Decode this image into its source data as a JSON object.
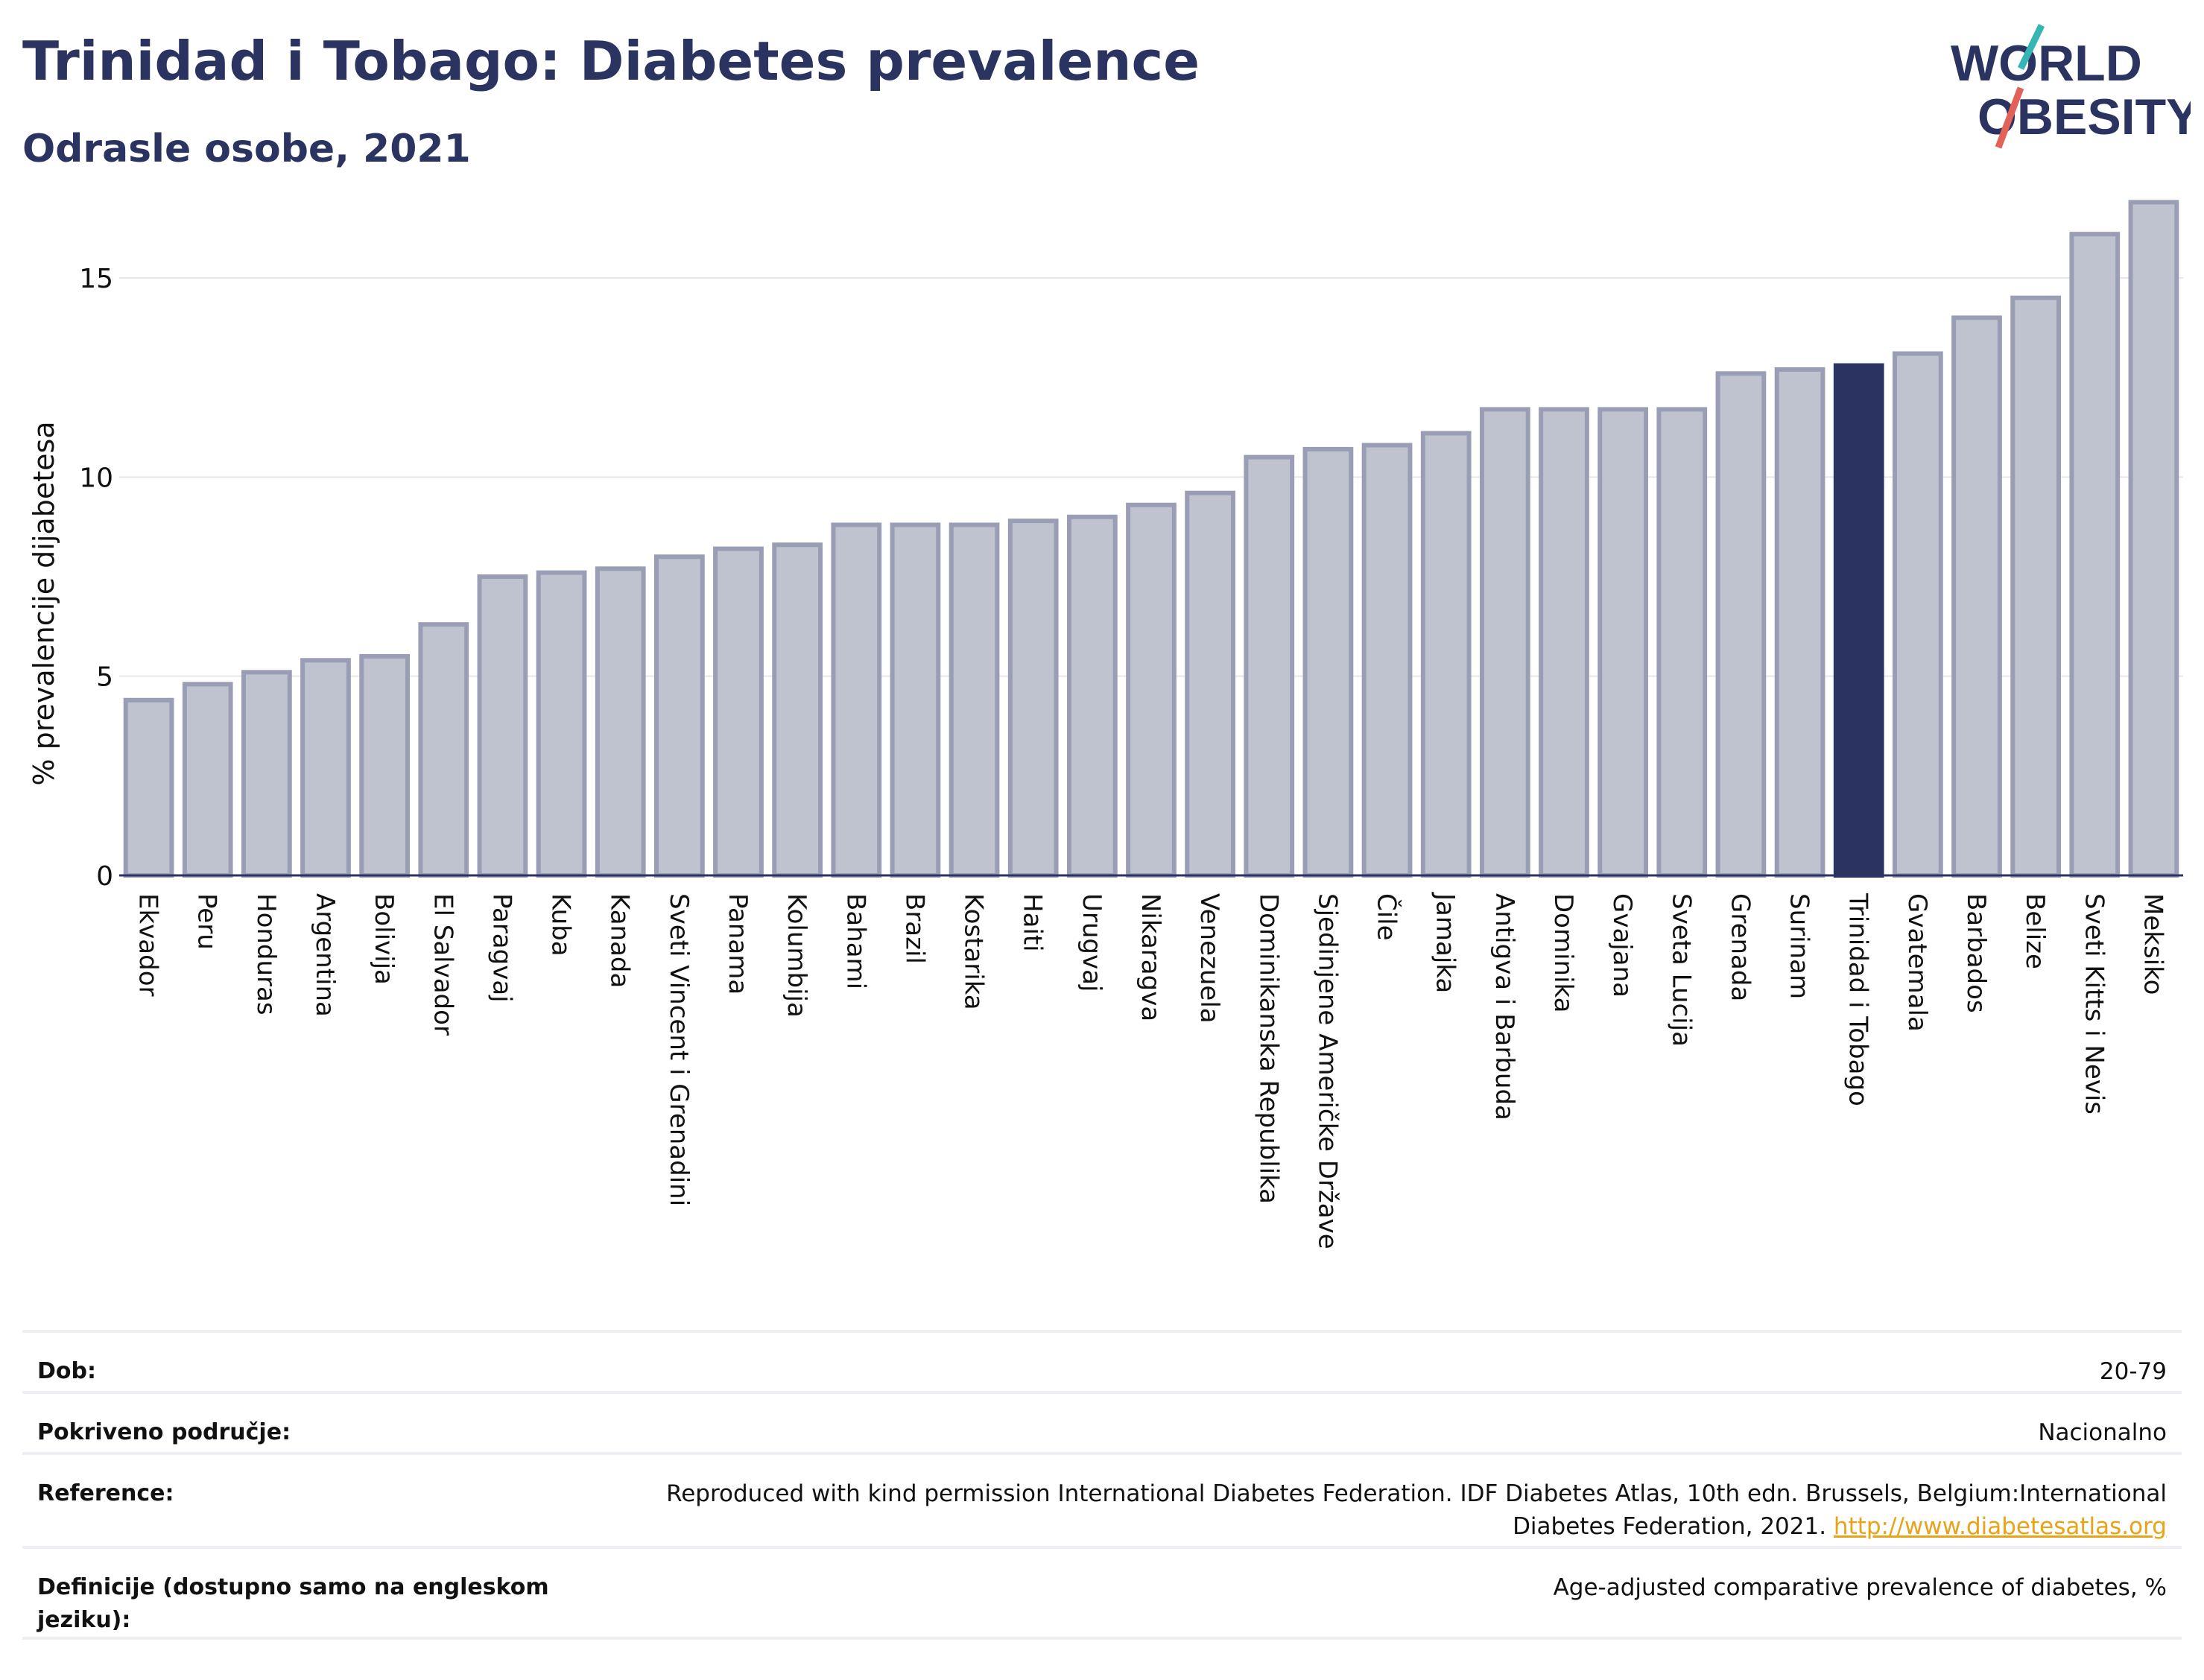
{
  "title": "Trinidad i Tobago: Diabetes prevalence",
  "subtitle": "Odrasle osobe, 2021",
  "logo": {
    "line1": "WORLD",
    "line2": "OBESITY"
  },
  "colors": {
    "highlight": "#2b3460",
    "bar_fill": "#bfc2cf",
    "bar_stroke": "#9a9eb5",
    "title": "#2b3460",
    "link": "#e8a317"
  },
  "chart_data": {
    "type": "bar",
    "ylabel": "% prevalencije dijabetesa",
    "ylim": [
      0,
      17.3
    ],
    "yticks": [
      0,
      5,
      10,
      15
    ],
    "grid": true,
    "highlight": "Trinidad i Tobago",
    "categories": [
      "Ekvador",
      "Peru",
      "Honduras",
      "Argentina",
      "Bolivija",
      "El Salvador",
      "Paragvaj",
      "Kuba",
      "Kanada",
      "Sveti Vincent i Grenadini",
      "Panama",
      "Kolumbija",
      "Bahami",
      "Brazil",
      "Kostarika",
      "Haiti",
      "Urugvaj",
      "Nikaragva",
      "Venezuela",
      "Dominikanska Republika",
      "Sjedinjene Američke Države",
      "Čile",
      "Jamajka",
      "Antigva i Barbuda",
      "Dominika",
      "Gvajana",
      "Sveta Lucija",
      "Grenada",
      "Surinam",
      "Trinidad i Tobago",
      "Gvatemala",
      "Barbados",
      "Belize",
      "Sveti Kitts i Nevis",
      "Meksiko"
    ],
    "values": [
      4.4,
      4.8,
      5.1,
      5.4,
      5.5,
      6.3,
      7.5,
      7.6,
      7.7,
      8.0,
      8.2,
      8.3,
      8.8,
      8.8,
      8.8,
      8.9,
      9.0,
      9.3,
      9.6,
      10.5,
      10.7,
      10.8,
      11.1,
      11.7,
      11.7,
      11.7,
      11.7,
      12.6,
      12.7,
      12.8,
      13.1,
      14.0,
      14.5,
      16.1,
      16.9
    ]
  },
  "meta": [
    {
      "key": "Dob:",
      "value": "20-79"
    },
    {
      "key": "Pokriveno područje:",
      "value": "Nacionalno"
    },
    {
      "key": "Reference:",
      "value": "Reproduced with kind permission International Diabetes Federation.  IDF Diabetes Atlas, 10th edn. Brussels, Belgium:International Diabetes Federation, 2021.",
      "link": "http://www.diabetesatlas.org"
    },
    {
      "key": "Definicije (dostupno samo na engleskom jeziku):",
      "value": "Age-adjusted comparative prevalence of diabetes, %"
    }
  ]
}
